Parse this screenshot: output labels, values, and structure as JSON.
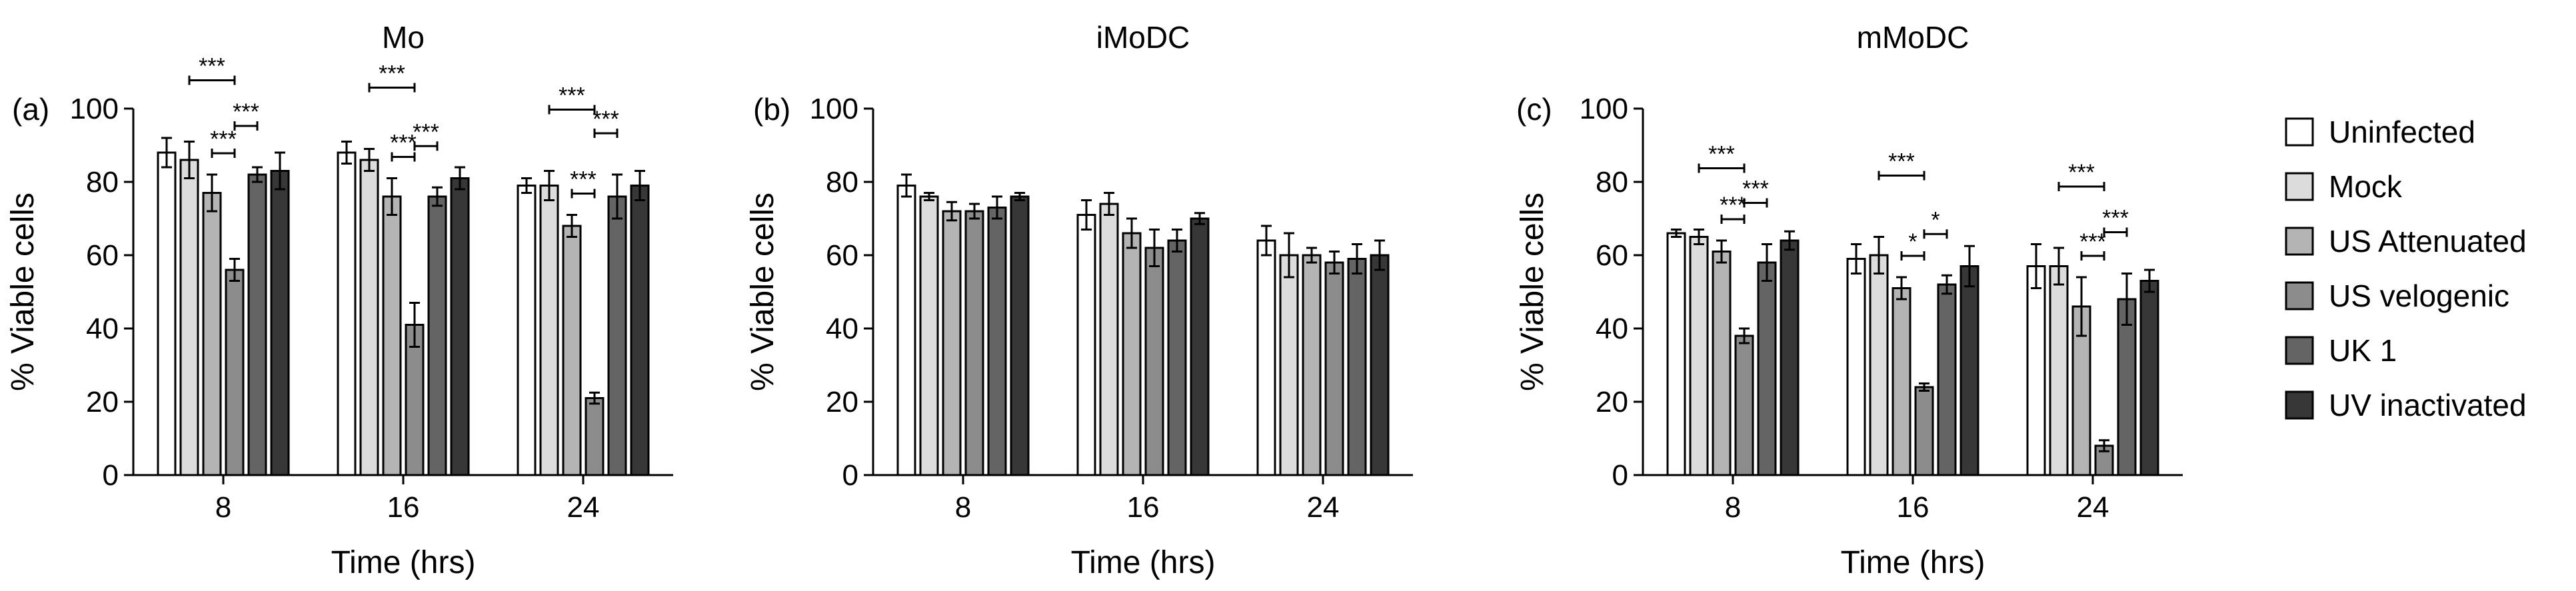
{
  "legend": [
    {
      "name": "Uninfected",
      "color": "#ffffff"
    },
    {
      "name": "Mock",
      "color": "#dcdcdc"
    },
    {
      "name": "US Attenuated",
      "color": "#b4b4b4"
    },
    {
      "name": "US velogenic",
      "color": "#8c8c8c"
    },
    {
      "name": " UK 1",
      "color": "#646464"
    },
    {
      "name": "UV inactivated",
      "color": "#373737"
    }
  ],
  "chart_data": [
    {
      "type": "bar",
      "panel_letter": "(a)",
      "title": "Mo",
      "xlabel": "Time (hrs)",
      "ylabel": "% Viable cells",
      "categories": [
        "8",
        "16",
        "24"
      ],
      "ylim": [
        0,
        100
      ],
      "yticks": [
        0,
        20,
        40,
        60,
        80,
        100
      ],
      "series": [
        {
          "name": "Uninfected",
          "values": [
            88,
            88,
            79
          ],
          "errors": [
            4,
            3,
            2
          ]
        },
        {
          "name": "Mock",
          "values": [
            86,
            86,
            79
          ],
          "errors": [
            5,
            3,
            4
          ]
        },
        {
          "name": "US Attenuated",
          "values": [
            77,
            76,
            68
          ],
          "errors": [
            5,
            5,
            3
          ]
        },
        {
          "name": "US velogenic",
          "values": [
            56,
            41,
            21
          ],
          "errors": [
            3,
            6,
            1.5
          ]
        },
        {
          "name": " UK 1",
          "values": [
            82,
            76,
            76
          ],
          "errors": [
            2,
            2.5,
            6
          ]
        },
        {
          "name": "UV inactivated",
          "values": [
            83,
            81,
            79
          ],
          "errors": [
            5,
            3,
            4
          ]
        }
      ],
      "significance": [
        {
          "group": 0,
          "from": 1,
          "to": 3,
          "level": 1,
          "label": "***"
        },
        {
          "group": 0,
          "from": 2,
          "to": 3,
          "level": 0,
          "label": "***"
        },
        {
          "group": 0,
          "from": 3,
          "to": 4,
          "level": 0.5,
          "label": "***"
        },
        {
          "group": 1,
          "from": 1,
          "to": 3,
          "level": 1,
          "label": "***"
        },
        {
          "group": 1,
          "from": 2,
          "to": 3,
          "level": 0,
          "label": "***"
        },
        {
          "group": 1,
          "from": 3,
          "to": 4,
          "level": 0.5,
          "label": "***"
        },
        {
          "group": 2,
          "from": 1,
          "to": 3,
          "level": 1,
          "label": "***"
        },
        {
          "group": 2,
          "from": 2,
          "to": 3,
          "level": 0,
          "label": "***"
        },
        {
          "group": 2,
          "from": 3,
          "to": 4,
          "level": 0.5,
          "label": "***"
        }
      ]
    },
    {
      "type": "bar",
      "panel_letter": "(b)",
      "title": "iMoDC",
      "xlabel": "Time (hrs)",
      "ylabel": "% Viable cells",
      "categories": [
        "8",
        "16",
        "24"
      ],
      "ylim": [
        0,
        100
      ],
      "yticks": [
        0,
        20,
        40,
        60,
        80,
        100
      ],
      "series": [
        {
          "name": "Uninfected",
          "values": [
            79,
            71,
            64
          ],
          "errors": [
            3,
            4,
            4
          ]
        },
        {
          "name": "Mock",
          "values": [
            76,
            74,
            60
          ],
          "errors": [
            1,
            3,
            6
          ]
        },
        {
          "name": "US Attenuated",
          "values": [
            72,
            66,
            60
          ],
          "errors": [
            2.5,
            4,
            2
          ]
        },
        {
          "name": "US velogenic",
          "values": [
            72,
            62,
            58
          ],
          "errors": [
            2,
            5,
            3
          ]
        },
        {
          "name": " UK 1",
          "values": [
            73,
            64,
            59
          ],
          "errors": [
            3,
            3,
            4
          ]
        },
        {
          "name": "UV inactivated",
          "values": [
            76,
            70,
            60
          ],
          "errors": [
            1,
            1.5,
            4
          ]
        }
      ],
      "significance": []
    },
    {
      "type": "bar",
      "panel_letter": "(c)",
      "title": "mMoDC",
      "xlabel": "Time (hrs)",
      "ylabel": "% Viable cells",
      "categories": [
        "8",
        "16",
        "24"
      ],
      "ylim": [
        0,
        100
      ],
      "yticks": [
        0,
        20,
        40,
        60,
        80,
        100
      ],
      "series": [
        {
          "name": "Uninfected",
          "values": [
            66,
            59,
            57
          ],
          "errors": [
            1,
            4,
            6
          ]
        },
        {
          "name": "Mock",
          "values": [
            65,
            60,
            57
          ],
          "errors": [
            2,
            5,
            5
          ]
        },
        {
          "name": "US Attenuated",
          "values": [
            61,
            51,
            46
          ],
          "errors": [
            3,
            3,
            8
          ]
        },
        {
          "name": "US velogenic",
          "values": [
            38,
            24,
            8
          ],
          "errors": [
            2,
            1,
            1.5
          ]
        },
        {
          "name": " UK 1",
          "values": [
            58,
            52,
            48
          ],
          "errors": [
            5,
            2.5,
            7
          ]
        },
        {
          "name": "UV inactivated",
          "values": [
            64,
            57,
            53
          ],
          "errors": [
            2.5,
            5.5,
            3
          ]
        }
      ],
      "significance": [
        {
          "group": 0,
          "from": 1,
          "to": 3,
          "level": 1,
          "label": "***"
        },
        {
          "group": 0,
          "from": 2,
          "to": 3,
          "level": 0,
          "label": "***"
        },
        {
          "group": 0,
          "from": 3,
          "to": 4,
          "level": 0.5,
          "label": "***"
        },
        {
          "group": 1,
          "from": 1,
          "to": 3,
          "level": 1,
          "label": "***"
        },
        {
          "group": 1,
          "from": 2,
          "to": 3,
          "level": 0,
          "label": "*"
        },
        {
          "group": 1,
          "from": 3,
          "to": 4,
          "level": 0.5,
          "label": "*"
        },
        {
          "group": 2,
          "from": 1,
          "to": 3,
          "level": 1,
          "label": "***"
        },
        {
          "group": 2,
          "from": 2,
          "to": 3,
          "level": 0,
          "label": "***"
        },
        {
          "group": 2,
          "from": 3,
          "to": 4,
          "level": 0.5,
          "label": "***"
        }
      ]
    }
  ]
}
